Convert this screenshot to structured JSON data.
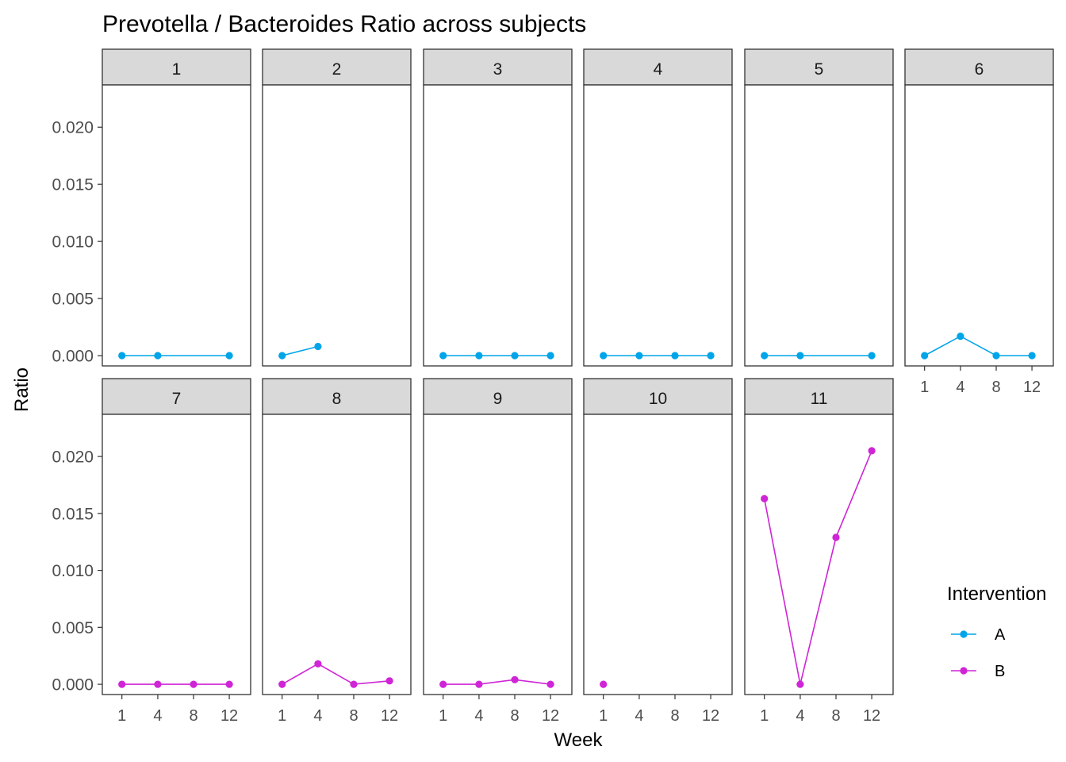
{
  "chart_data": {
    "type": "line",
    "title": "Prevotella / Bacteroides Ratio across subjects",
    "xlabel": "Week",
    "ylabel": "Ratio",
    "x_categories": [
      "1",
      "4",
      "8",
      "12"
    ],
    "y_ticks": [
      "0.000",
      "0.005",
      "0.010",
      "0.015",
      "0.020"
    ],
    "ylim": [
      -0.0009,
      0.0237
    ],
    "facet_by": "subject",
    "grid": false,
    "legend": {
      "title": "Intervention",
      "placement": "right",
      "entries": [
        {
          "name": "A",
          "color": "#00A5E9"
        },
        {
          "name": "B",
          "color": "#CF25D6"
        }
      ]
    },
    "panels": [
      {
        "label": "1",
        "intervention": "A",
        "points": [
          [
            1,
            0.0
          ],
          [
            4,
            0.0
          ],
          [
            12,
            0.0
          ]
        ]
      },
      {
        "label": "2",
        "intervention": "A",
        "points": [
          [
            1,
            0.0
          ],
          [
            4,
            0.0008
          ]
        ]
      },
      {
        "label": "3",
        "intervention": "A",
        "points": [
          [
            1,
            0.0
          ],
          [
            4,
            0.0
          ],
          [
            8,
            0.0
          ],
          [
            12,
            0.0
          ]
        ]
      },
      {
        "label": "4",
        "intervention": "A",
        "points": [
          [
            1,
            0.0
          ],
          [
            4,
            0.0
          ],
          [
            8,
            0.0
          ],
          [
            12,
            0.0
          ]
        ]
      },
      {
        "label": "5",
        "intervention": "A",
        "points": [
          [
            1,
            0.0
          ],
          [
            4,
            0.0
          ],
          [
            12,
            0.0
          ]
        ]
      },
      {
        "label": "6",
        "intervention": "A",
        "points": [
          [
            1,
            0.0
          ],
          [
            4,
            0.0017
          ],
          [
            8,
            0.0
          ],
          [
            12,
            0.0
          ]
        ]
      },
      {
        "label": "7",
        "intervention": "B",
        "points": [
          [
            1,
            0.0
          ],
          [
            4,
            0.0
          ],
          [
            8,
            0.0
          ],
          [
            12,
            0.0
          ]
        ]
      },
      {
        "label": "8",
        "intervention": "B",
        "points": [
          [
            1,
            0.0
          ],
          [
            4,
            0.0018
          ],
          [
            8,
            0.0
          ],
          [
            12,
            0.0003
          ]
        ]
      },
      {
        "label": "9",
        "intervention": "B",
        "points": [
          [
            1,
            0.0
          ],
          [
            4,
            0.0
          ],
          [
            8,
            0.0004
          ],
          [
            12,
            0.0
          ]
        ]
      },
      {
        "label": "10",
        "intervention": "B",
        "points": [
          [
            1,
            0.0
          ]
        ]
      },
      {
        "label": "11",
        "intervention": "B",
        "points": [
          [
            1,
            0.0163
          ],
          [
            4,
            0.0
          ],
          [
            8,
            0.0129
          ],
          [
            12,
            0.0205
          ]
        ]
      }
    ]
  }
}
